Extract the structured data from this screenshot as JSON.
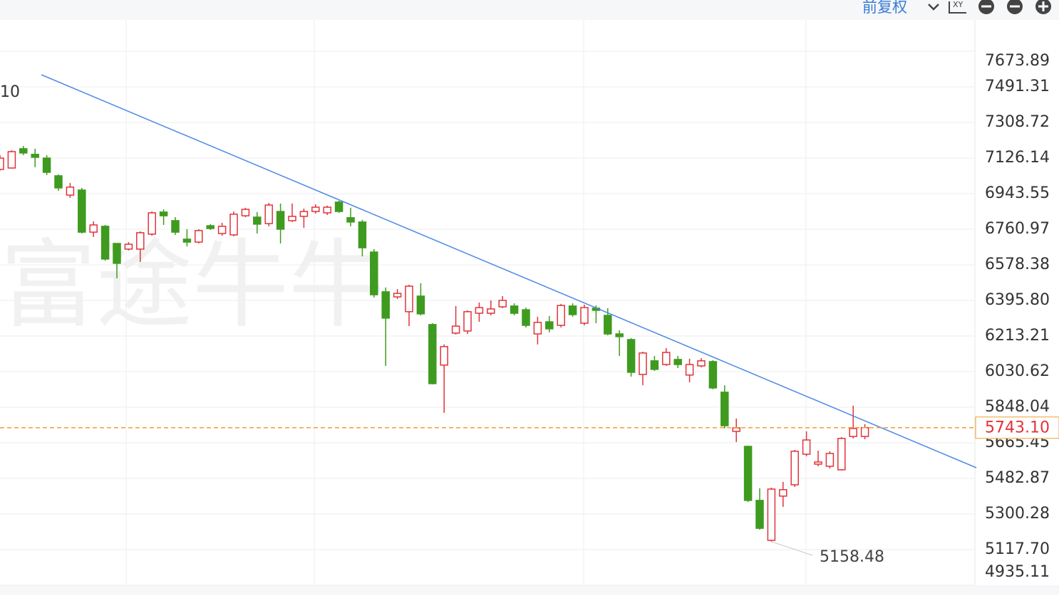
{
  "toolbar": {
    "adjust": "前复权",
    "xy": "XY"
  },
  "chart_data": {
    "type": "candlestick",
    "watermark": "富途牛牛",
    "edge_label": "10",
    "up_color": "#e0343a",
    "down_color": "#3f9b1f",
    "categories": [
      null,
      null,
      null,
      null,
      null,
      null,
      null,
      null,
      null,
      null,
      null,
      null,
      null,
      null,
      null,
      null,
      null,
      null,
      null,
      null,
      null,
      null,
      null,
      null,
      null,
      null,
      null,
      null,
      null,
      null,
      null,
      null,
      null,
      null,
      null,
      null,
      null,
      null,
      null,
      null,
      null,
      null,
      null,
      null,
      null,
      null,
      null,
      null,
      null,
      null,
      null,
      null,
      null,
      null,
      null,
      null,
      null,
      null,
      null,
      null,
      null,
      null,
      null,
      null,
      null,
      null,
      null,
      null,
      null,
      null,
      null,
      null,
      null,
      null,
      null
    ],
    "open": [
      7068,
      7075,
      7174,
      7145,
      7126,
      7035,
      6936,
      6962,
      6746,
      6776,
      6688,
      6659,
      6659,
      6736,
      6849,
      6805,
      6710,
      6695,
      6779,
      6739,
      6732,
      6830,
      6823,
      6790,
      6852,
      6805,
      6827,
      6852,
      6845,
      6900,
      6820,
      6798,
      6644,
      6440,
      6414,
      6338,
      6418,
      6272,
      6064,
      6228,
      6239,
      6330,
      6330,
      6363,
      6367,
      6348,
      6224,
      6286,
      6268,
      6367,
      6279,
      6356,
      6319,
      6224,
      6195,
      6016,
      6086,
      6067,
      6093,
      6013,
      6060,
      6082,
      5925,
      5724,
      5647,
      5370,
      5165,
      5392,
      5450,
      5607,
      5556,
      5545,
      5527,
      5698,
      5698
    ],
    "high": [
      7141,
      7166,
      7188,
      7174,
      7141,
      7042,
      6998,
      6973,
      6801,
      6783,
      6688,
      6695,
      6750,
      6852,
      6863,
      6823,
      6761,
      6761,
      6787,
      6794,
      6852,
      6871,
      6849,
      6896,
      6893,
      6893,
      6867,
      6889,
      6882,
      6907,
      6871,
      6809,
      6659,
      6462,
      6454,
      6476,
      6484,
      6279,
      6170,
      6367,
      6345,
      6385,
      6396,
      6418,
      6381,
      6359,
      6312,
      6316,
      6378,
      6381,
      6374,
      6370,
      6356,
      6243,
      6202,
      6133,
      6111,
      6151,
      6111,
      6097,
      6100,
      6089,
      5961,
      5790,
      5651,
      5432,
      5436,
      5465,
      5629,
      5724,
      5625,
      5622,
      5695,
      5856,
      5761
    ],
    "low": [
      7061,
      7072,
      7141,
      7079,
      7039,
      6958,
      6922,
      6739,
      6721,
      6600,
      6509,
      6652,
      6593,
      6728,
      6783,
      6732,
      6673,
      6688,
      6757,
      6728,
      6725,
      6823,
      6739,
      6776,
      6688,
      6798,
      6768,
      6841,
      6834,
      6845,
      6776,
      6622,
      6411,
      6060,
      6403,
      6264,
      6319,
      5965,
      5819,
      6221,
      6224,
      6286,
      6319,
      6356,
      6319,
      6257,
      6170,
      6232,
      6257,
      6312,
      6268,
      6279,
      6217,
      6111,
      6005,
      5961,
      6034,
      6060,
      6049,
      5976,
      6053,
      5940,
      5739,
      5669,
      5362,
      5220,
      5158.48,
      5337,
      5439,
      5596,
      5545,
      5534,
      5523,
      5688,
      5684
    ],
    "close": [
      7126,
      7159,
      7152,
      7130,
      7053,
      6973,
      6977,
      6746,
      6783,
      6608,
      6586,
      6684,
      6743,
      6845,
      6830,
      6746,
      6695,
      6754,
      6765,
      6776,
      6838,
      6863,
      6787,
      6885,
      6761,
      6827,
      6852,
      6874,
      6874,
      6852,
      6798,
      6666,
      6425,
      6305,
      6432,
      6469,
      6327,
      5969,
      6159,
      6264,
      6338,
      6359,
      6352,
      6396,
      6330,
      6268,
      6283,
      6250,
      6370,
      6323,
      6359,
      6345,
      6224,
      6210,
      6027,
      6126,
      6042,
      6129,
      6067,
      6067,
      6086,
      5947,
      5753,
      5742,
      5370,
      5227,
      5428,
      5425,
      5622,
      5680,
      5567,
      5611,
      5688,
      5739,
      5743.1
    ],
    "ylim": [
      4935.11,
      7834.56
    ],
    "yticks": [
      7673.89,
      7491.31,
      7308.72,
      7126.14,
      6943.55,
      6760.97,
      6578.38,
      {
        "value": 6395.8,
        "label": "6395.80"
      },
      6213.21,
      6030.62,
      5848.04,
      5665.45,
      5482.87,
      5300.28,
      {
        "value": 5117.7,
        "label": "5117.70"
      },
      4935.11
    ],
    "grid": true,
    "current_price": {
      "value": 5743.1,
      "label": "5743.10",
      "color": "#f0a030"
    },
    "low_marker": 5158.48
  }
}
